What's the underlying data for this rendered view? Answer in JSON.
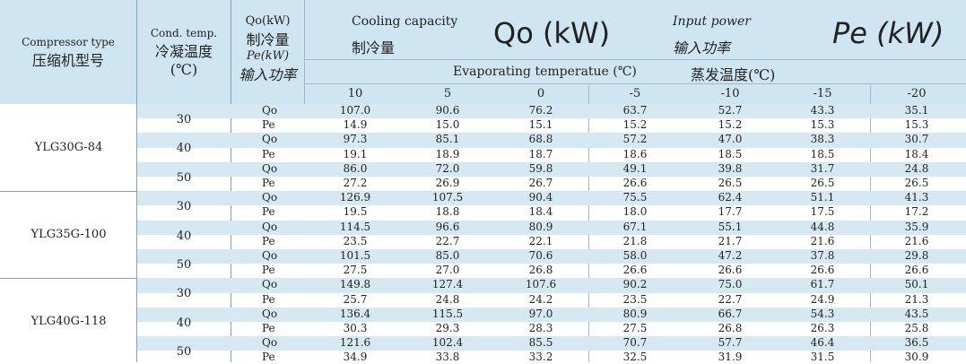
{
  "header": {
    "compressor_type_en": "Compressor type",
    "compressor_type_cn": "压缩机型号",
    "cond_temp_en": "Cond. temp.",
    "cond_temp_cn": "冷凝温度",
    "cond_temp_unit": "(℃)",
    "qo_label": "Qo(kW)",
    "qo_cn": "制冷量",
    "pe_label": "Pe(kW)",
    "pe_cn": "输入功率",
    "cooling_capacity_en": "Cooling capacity",
    "cooling_capacity_cn": "制冷量",
    "qo_big": "Qo (kW)",
    "input_power_en": "Input power",
    "input_power_cn": "输入功率",
    "pe_big": "Pe (kW)",
    "evap_en": "Evaporating temperatue (℃)",
    "evap_cn": "蒸发温度(℃)",
    "evap_temps": [
      "10",
      "5",
      "0",
      "-5",
      "-10",
      "-15",
      "-20"
    ]
  },
  "rows": {
    "labels": {
      "qo": "Qo",
      "pe": "Pe"
    },
    "models": [
      {
        "name": "YLG30G-84",
        "conds": [
          {
            "temp": "30",
            "qo": [
              "107.0",
              "90.6",
              "76.2",
              "63.7",
              "52.7",
              "43.3",
              "35.1"
            ],
            "pe": [
              "14.9",
              "15.0",
              "15.1",
              "15.2",
              "15.2",
              "15.3",
              "15.3"
            ]
          },
          {
            "temp": "40",
            "qo": [
              "97.3",
              "85.1",
              "68.8",
              "57.2",
              "47.0",
              "38.3",
              "30.7"
            ],
            "pe": [
              "19.1",
              "18.9",
              "18.7",
              "18.6",
              "18.5",
              "18.5",
              "18.4"
            ]
          },
          {
            "temp": "50",
            "qo": [
              "86.0",
              "72.0",
              "59.8",
              "49.1",
              "39.8",
              "31.7",
              "24.8"
            ],
            "pe": [
              "27.2",
              "26.9",
              "26.7",
              "26.6",
              "26.5",
              "26.5",
              "26.5"
            ]
          }
        ]
      },
      {
        "name": "YLG35G-100",
        "conds": [
          {
            "temp": "30",
            "qo": [
              "126.9",
              "107.5",
              "90.4",
              "75.5",
              "62.4",
              "51.1",
              "41.3"
            ],
            "pe": [
              "19.5",
              "18.8",
              "18.4",
              "18.0",
              "17.7",
              "17.5",
              "17.2"
            ]
          },
          {
            "temp": "40",
            "qo": [
              "114.5",
              "96.6",
              "80.9",
              "67.1",
              "55.1",
              "44.8",
              "35.9"
            ],
            "pe": [
              "23.5",
              "22.7",
              "22.1",
              "21.8",
              "21.7",
              "21.6",
              "21.6"
            ]
          },
          {
            "temp": "50",
            "qo": [
              "101.5",
              "85.0",
              "70.6",
              "58.0",
              "47.2",
              "37.8",
              "29.8"
            ],
            "pe": [
              "27.5",
              "27.0",
              "26.8",
              "26.6",
              "26.6",
              "26.6",
              "26.6"
            ]
          }
        ]
      },
      {
        "name": "YLG40G-118",
        "conds": [
          {
            "temp": "30",
            "qo": [
              "149.8",
              "127.4",
              "107.6",
              "90.2",
              "75.0",
              "61.7",
              "50.1"
            ],
            "pe": [
              "25.7",
              "24.8",
              "24.2",
              "23.5",
              "22.7",
              "24.9",
              "21.3"
            ]
          },
          {
            "temp": "40",
            "qo": [
              "136.4",
              "115.5",
              "97.0",
              "80.9",
              "66.7",
              "54.3",
              "43.5"
            ],
            "pe": [
              "30.3",
              "29.3",
              "28.3",
              "27.5",
              "26.8",
              "26.3",
              "25.8"
            ]
          },
          {
            "temp": "50",
            "qo": [
              "121.6",
              "102.4",
              "85.5",
              "70.7",
              "57.7",
              "46.4",
              "36.5"
            ],
            "pe": [
              "34.9",
              "33.8",
              "33.2",
              "32.5",
              "31.9",
              "31.5",
              "30.9"
            ]
          }
        ]
      }
    ]
  }
}
